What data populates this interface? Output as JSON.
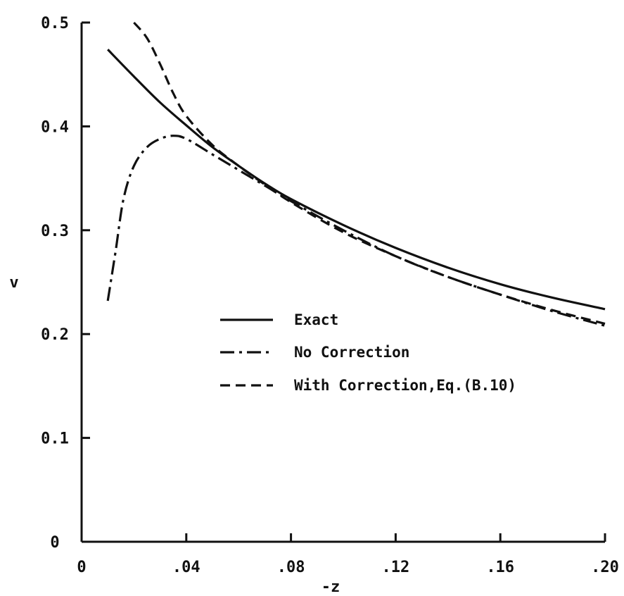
{
  "chart_data": {
    "type": "line",
    "title": "",
    "xlabel": "-z",
    "ylabel": "v",
    "xlim": [
      0,
      0.2
    ],
    "ylim": [
      0,
      0.5
    ],
    "x_ticks": [
      0,
      0.04,
      0.08,
      0.12,
      0.16,
      0.2
    ],
    "x_tick_labels": [
      "0",
      ".04",
      ".08",
      ".12",
      ".16",
      ".20"
    ],
    "y_ticks": [
      0,
      0.1,
      0.2,
      0.3,
      0.4,
      0.5
    ],
    "y_tick_labels": [
      "0",
      "0.1",
      "0.2",
      "0.3",
      "0.4",
      "0.5"
    ],
    "grid": false,
    "legend_position": "center",
    "series": [
      {
        "name": "Exact",
        "line_style": "solid",
        "x": [
          0.01,
          0.02,
          0.03,
          0.04,
          0.05,
          0.06,
          0.07,
          0.08,
          0.1,
          0.12,
          0.14,
          0.16,
          0.18,
          0.2
        ],
        "y": [
          0.474,
          0.448,
          0.423,
          0.401,
          0.38,
          0.362,
          0.345,
          0.33,
          0.305,
          0.283,
          0.264,
          0.248,
          0.235,
          0.224
        ]
      },
      {
        "name": "No Correction",
        "line_style": "dash-dot",
        "x": [
          0.01,
          0.013,
          0.016,
          0.02,
          0.025,
          0.03,
          0.035,
          0.04,
          0.05,
          0.06,
          0.07,
          0.08,
          0.1,
          0.12,
          0.14,
          0.16,
          0.18,
          0.2
        ],
        "y": [
          0.232,
          0.28,
          0.33,
          0.362,
          0.38,
          0.388,
          0.391,
          0.388,
          0.373,
          0.358,
          0.343,
          0.328,
          0.3,
          0.275,
          0.255,
          0.238,
          0.222,
          0.208
        ]
      },
      {
        "name": "With Correction,Eq.(B.10)",
        "line_style": "dashed",
        "x": [
          0.02,
          0.025,
          0.03,
          0.035,
          0.04,
          0.05,
          0.06,
          0.07,
          0.08,
          0.1,
          0.12,
          0.14,
          0.16,
          0.18,
          0.2
        ],
        "y": [
          0.5,
          0.485,
          0.46,
          0.432,
          0.41,
          0.382,
          0.362,
          0.344,
          0.327,
          0.298,
          0.275,
          0.255,
          0.238,
          0.223,
          0.21
        ]
      }
    ]
  }
}
